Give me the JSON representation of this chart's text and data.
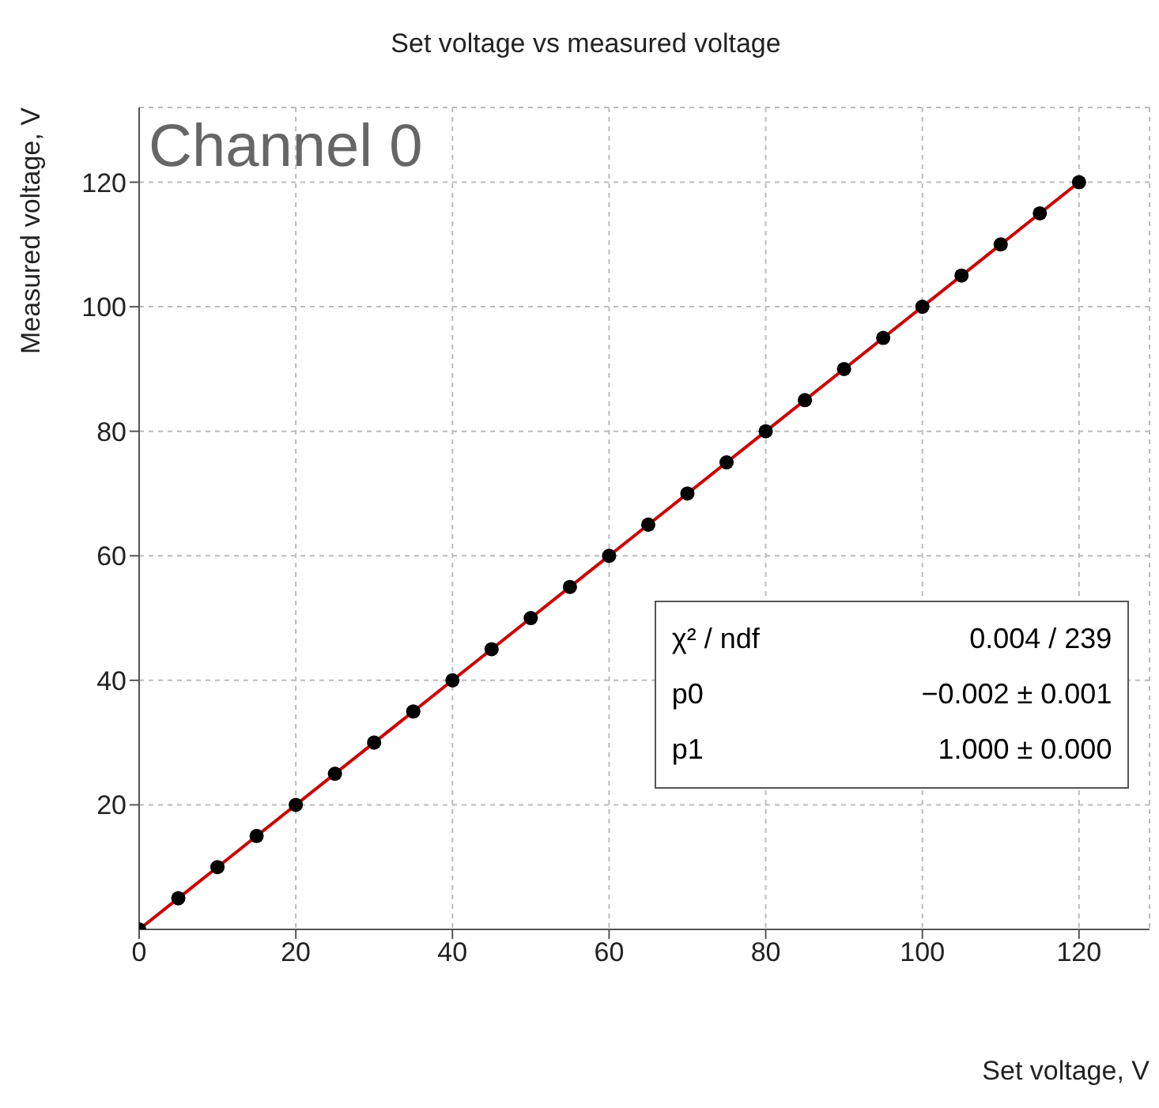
{
  "chart_data": {
    "type": "scatter",
    "title": "Set voltage vs measured voltage",
    "xlabel": "Set voltage, V",
    "ylabel": "Measured voltage, V",
    "xlim": [
      0,
      129
    ],
    "ylim": [
      0,
      132
    ],
    "xticks": [
      0,
      20,
      40,
      60,
      80,
      100,
      120
    ],
    "yticks": [
      20,
      40,
      60,
      80,
      100,
      120
    ],
    "grid": true,
    "series": [
      {
        "marker": "circle",
        "color": "#000000",
        "x": [
          0,
          5,
          10,
          15,
          20,
          25,
          30,
          35,
          40,
          45,
          50,
          55,
          60,
          65,
          70,
          75,
          80,
          85,
          90,
          95,
          100,
          105,
          110,
          115,
          120
        ],
        "values": [
          0,
          5,
          10,
          15,
          20,
          25,
          30,
          35,
          40,
          45,
          50,
          55,
          60,
          65,
          70,
          75,
          80,
          85,
          90,
          95,
          100,
          105,
          110,
          115,
          120
        ]
      },
      {
        "type": "line",
        "color": "#cc0000",
        "x": [
          0,
          120
        ],
        "values": [
          0,
          120
        ]
      }
    ],
    "annotations": [
      "Channel 0",
      "χ² / ndf",
      "0.004 / 239",
      "p0",
      "−0.002 ± 0.001",
      "p1",
      "1.000 ± 0.000"
    ]
  }
}
